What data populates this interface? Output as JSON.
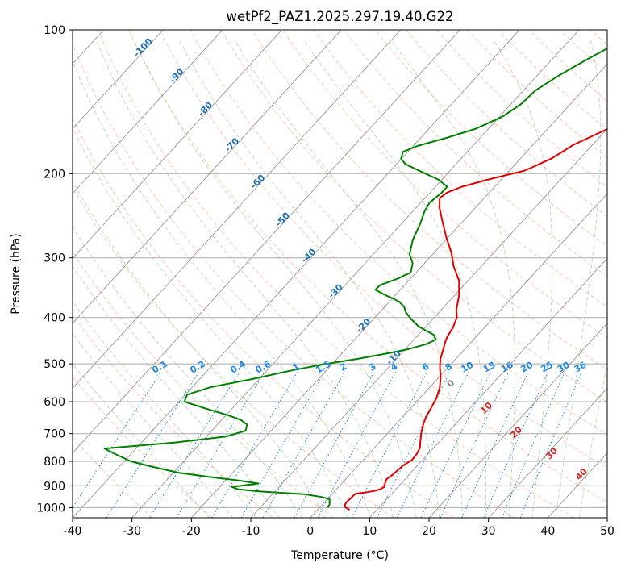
{
  "chart_data": {
    "type": "line",
    "title": "wetPf2_PAZ1.2025.297.19.40.G22",
    "xlabel": "Temperature (°C)",
    "ylabel": "Pressure (hPa)",
    "xlim": [
      -40,
      50
    ],
    "ylim": [
      1050,
      100
    ],
    "y_scale": "log",
    "x_ticks": [
      -40,
      -30,
      -20,
      -10,
      0,
      10,
      20,
      30,
      40,
      50
    ],
    "y_ticks": [
      100,
      200,
      300,
      400,
      500,
      600,
      700,
      800,
      900,
      1000
    ],
    "grid": true,
    "skew": true,
    "series": [
      {
        "color": "#e00000",
        "points": [
          [
            5.4,
            1010
          ],
          [
            4.4,
            1000
          ],
          [
            3.9,
            990
          ],
          [
            3.7,
            975
          ],
          [
            3.8,
            955
          ],
          [
            3.9,
            935
          ],
          [
            5.2,
            930
          ],
          [
            6.6,
            923
          ],
          [
            7.4,
            915
          ],
          [
            7.7,
            905
          ],
          [
            7.3,
            890
          ],
          [
            6.9,
            872
          ],
          [
            7.2,
            855
          ],
          [
            7.4,
            835
          ],
          [
            7.6,
            815
          ],
          [
            8.2,
            795
          ],
          [
            8.1,
            772
          ],
          [
            7.7,
            750
          ],
          [
            6.7,
            725
          ],
          [
            5.7,
            700
          ],
          [
            4.7,
            672
          ],
          [
            3.9,
            645
          ],
          [
            3.4,
            618
          ],
          [
            2.8,
            590
          ],
          [
            1.7,
            560
          ],
          [
            0.2,
            532
          ],
          [
            -1.4,
            508
          ],
          [
            -2.6,
            488
          ],
          [
            -3.5,
            468
          ],
          [
            -4.3,
            452
          ],
          [
            -4.8,
            440
          ],
          [
            -5.3,
            420
          ],
          [
            -6.2,
            400
          ],
          [
            -7.5,
            385
          ],
          [
            -9.2,
            360
          ],
          [
            -11.5,
            335
          ],
          [
            -14.7,
            312
          ],
          [
            -17.2,
            292
          ],
          [
            -20.3,
            272
          ],
          [
            -23.4,
            252
          ],
          [
            -26.0,
            236
          ],
          [
            -27.5,
            225
          ],
          [
            -27.1,
            219
          ],
          [
            -25.5,
            213
          ],
          [
            -22.3,
            206
          ],
          [
            -17.4,
            197
          ],
          [
            -14.8,
            186
          ],
          [
            -13.2,
            174
          ],
          [
            -10.1,
            162
          ],
          [
            -6.3,
            148
          ],
          [
            -3.2,
            135
          ],
          [
            -0.2,
            124
          ],
          [
            2.7,
            114
          ],
          [
            4.8,
            106
          ],
          [
            6.3,
            100
          ]
        ]
      },
      {
        "color": "#008000",
        "points": [
          [
            1.4,
            1000
          ],
          [
            1.2,
            985
          ],
          [
            0.4,
            960
          ],
          [
            -1.3,
            950
          ],
          [
            -4.7,
            937
          ],
          [
            -12.5,
            925
          ],
          [
            -16.6,
            915
          ],
          [
            -17.9,
            905
          ],
          [
            -14.0,
            890
          ],
          [
            -17.8,
            877
          ],
          [
            -23.4,
            862
          ],
          [
            -29.1,
            845
          ],
          [
            -34.7,
            820
          ],
          [
            -38.9,
            800
          ],
          [
            -42.7,
            772
          ],
          [
            -45.3,
            752
          ],
          [
            -41.8,
            745
          ],
          [
            -34.2,
            730
          ],
          [
            -26.7,
            710
          ],
          [
            -24.3,
            690
          ],
          [
            -25.0,
            670
          ],
          [
            -26.8,
            655
          ],
          [
            -29.8,
            640
          ],
          [
            -34.5,
            620
          ],
          [
            -39.1,
            600
          ],
          [
            -39.7,
            580
          ],
          [
            -37.0,
            560
          ],
          [
            -31.1,
            538
          ],
          [
            -26.3,
            518
          ],
          [
            -21.7,
            502
          ],
          [
            -16.5,
            488
          ],
          [
            -12.5,
            476
          ],
          [
            -9.5,
            466
          ],
          [
            -7.3,
            455
          ],
          [
            -6.3,
            445
          ],
          [
            -7.4,
            435
          ],
          [
            -11.2,
            418
          ],
          [
            -13.8,
            402
          ],
          [
            -15.6,
            390
          ],
          [
            -16.7,
            380
          ],
          [
            -18.5,
            370
          ],
          [
            -22.0,
            358
          ],
          [
            -24.2,
            350
          ],
          [
            -24.1,
            342
          ],
          [
            -22.2,
            332
          ],
          [
            -20.9,
            322
          ],
          [
            -22.0,
            308
          ],
          [
            -23.9,
            295
          ],
          [
            -25.6,
            275
          ],
          [
            -26.8,
            255
          ],
          [
            -28.0,
            240
          ],
          [
            -28.5,
            230
          ],
          [
            -28.0,
            219
          ],
          [
            -28.0,
            213
          ],
          [
            -30.5,
            206
          ],
          [
            -34.7,
            198
          ],
          [
            -38.5,
            191
          ],
          [
            -40.1,
            186
          ],
          [
            -40.8,
            180
          ],
          [
            -39.3,
            175
          ],
          [
            -35.5,
            168
          ],
          [
            -32.1,
            161
          ],
          [
            -29.5,
            152
          ],
          [
            -28.3,
            143
          ],
          [
            -28.0,
            134
          ],
          [
            -26.2,
            124
          ],
          [
            -24.0,
            115
          ],
          [
            -22.0,
            108
          ],
          [
            -20.4,
            104
          ],
          [
            -19.0,
            100
          ]
        ]
      }
    ],
    "dry_adiabat_color": "#ffa07a",
    "moist_adiabat_color": "#90c890",
    "mixing_ratio_color": "#1e88e5",
    "isotherm_label_color": "#1f6fb0",
    "isotherm_labels": [
      "-100",
      "-90",
      "-80",
      "-70",
      "-60",
      "-50",
      "-40",
      "-30",
      "-20",
      "-10"
    ],
    "isotherm_label_values": [
      -100,
      -90,
      -80,
      -70,
      -60,
      -50,
      -40,
      -30,
      -20,
      -10
    ],
    "mixing_ratio_labels": [
      "0.1",
      "0.2",
      "0.4",
      "0.6",
      "1",
      "1.5",
      "2",
      "3",
      "4",
      "6",
      "8",
      "10",
      "13",
      "16",
      "20",
      "25",
      "30",
      "36"
    ],
    "mixing_ratio_values": [
      0.1,
      0.2,
      0.4,
      0.6,
      1,
      1.5,
      2,
      3,
      4,
      6,
      8,
      10,
      13,
      16,
      20,
      25,
      30,
      36
    ],
    "lcl_labels": [
      "0",
      "10",
      "20",
      "30",
      "40"
    ],
    "lcl_label_colors": [
      "#808080",
      "#d62728",
      "#d62728",
      "#d62728",
      "#d62728"
    ]
  }
}
